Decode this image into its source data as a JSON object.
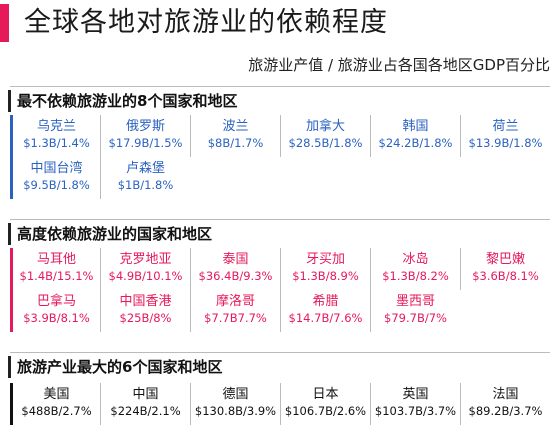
{
  "title": "全球各地对旅游业的依赖程度",
  "subtitle": "旅游业产值 / 旅游业占各国各地区GDP百分比",
  "colors": {
    "accent_pink": "#e6195a",
    "accent_blue": "#2a62c0",
    "dark": "#111111"
  },
  "sections": [
    {
      "title": "最不依赖旅游业的8个国家和地区",
      "items": [
        {
          "name": "乌克兰",
          "value": "$1.3B/1.4%"
        },
        {
          "name": "俄罗斯",
          "value": "$17.9B/1.5%"
        },
        {
          "name": "波兰",
          "value": "$8B/1.7%"
        },
        {
          "name": "加拿大",
          "value": "$28.5B/1.8%"
        },
        {
          "name": "韩国",
          "value": "$24.2B/1.8%"
        },
        {
          "name": "荷兰",
          "value": "$13.9B/1.8%"
        },
        {
          "name": "中国台湾",
          "value": "$9.5B/1.8%"
        },
        {
          "name": "卢森堡",
          "value": "$1B/1.8%"
        }
      ]
    },
    {
      "title": "高度依赖旅游业的国家和地区",
      "items": [
        {
          "name": "马耳他",
          "value": "$1.4B/15.1%"
        },
        {
          "name": "克罗地亚",
          "value": "$4.9B/10.1%"
        },
        {
          "name": "泰国",
          "value": "$36.4B/9.3%"
        },
        {
          "name": "牙买加",
          "value": "$1.3B/8.9%"
        },
        {
          "name": "冰岛",
          "value": "$1.3B/8.2%"
        },
        {
          "name": "黎巴嫩",
          "value": "$3.6B/8.1%"
        },
        {
          "name": "巴拿马",
          "value": "$3.9B/8.1%"
        },
        {
          "name": "中国香港",
          "value": "$25B/8%"
        },
        {
          "name": "摩洛哥",
          "value": "$7.7B7.7%"
        },
        {
          "name": "希腊",
          "value": "$14.7B/7.6%"
        },
        {
          "name": "墨西哥",
          "value": "$79.7B/7%"
        }
      ]
    },
    {
      "title": "旅游产业最大的6个国家和地区",
      "items": [
        {
          "name": "美国",
          "value": "$488B/2.7%"
        },
        {
          "name": "中国",
          "value": "$224B/2.1%"
        },
        {
          "name": "德国",
          "value": "$130.8B/3.9%"
        },
        {
          "name": "日本",
          "value": "$106.7B/2.6%"
        },
        {
          "name": "英国",
          "value": "$103.7B/3.7%"
        },
        {
          "name": "法国",
          "value": "$89.2B/3.7%"
        }
      ]
    }
  ]
}
